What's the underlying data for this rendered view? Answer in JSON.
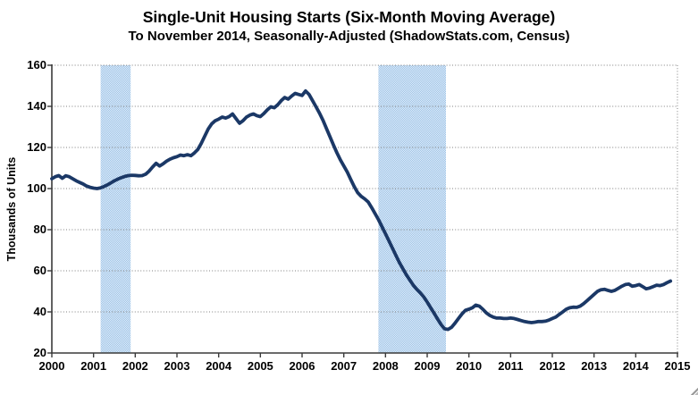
{
  "title": "Single-Unit Housing Starts (Six-Month Moving Average)",
  "subtitle": "To November 2014, Seasonally-Adjusted (ShadowStats.com, Census)",
  "chart_data": {
    "type": "line",
    "title": "Single-Unit Housing Starts (Six-Month Moving Average)",
    "subtitle": "To November 2014, Seasonally-Adjusted (ShadowStats.com, Census)",
    "xlabel": "",
    "ylabel": "Thousands of Units",
    "xlim": [
      2000,
      2015
    ],
    "ylim": [
      20,
      160
    ],
    "x_ticks": [
      2000,
      2001,
      2002,
      2003,
      2004,
      2005,
      2006,
      2007,
      2008,
      2009,
      2010,
      2011,
      2012,
      2013,
      2014,
      2015
    ],
    "y_ticks": [
      20,
      40,
      60,
      80,
      100,
      120,
      140,
      160
    ],
    "grid": "horizontal-dotted",
    "legend": "none",
    "colors": {
      "line": "#1b3866",
      "band_dot": "#9cc2e5",
      "band_bg": "#e2eefb",
      "grid": "#7f7f7f",
      "axis": "#3a3a3a",
      "text": "#000000"
    },
    "recession_bands": [
      {
        "start": 2001.17,
        "end": 2001.89
      },
      {
        "start": 2007.83,
        "end": 2009.45
      }
    ],
    "series": [
      {
        "name": "Single-unit housing starts, 6-month moving average",
        "x_start_year": 2000,
        "points_per_year": 12,
        "last_point": "November 2014",
        "values": [
          104.8,
          105.8,
          106.3,
          105.0,
          106.2,
          105.8,
          104.8,
          103.8,
          103.0,
          102.2,
          101.2,
          100.6,
          100.2,
          100.0,
          100.3,
          101.0,
          101.8,
          102.8,
          103.8,
          104.6,
          105.3,
          105.9,
          106.3,
          106.5,
          106.4,
          106.2,
          106.3,
          107.0,
          108.5,
          110.5,
          112.3,
          111.0,
          112.0,
          113.3,
          114.3,
          115.0,
          115.5,
          116.3,
          116.0,
          116.5,
          116.0,
          117.3,
          119.0,
          122.0,
          125.5,
          129.0,
          131.5,
          133.0,
          133.8,
          134.8,
          134.3,
          135.0,
          136.3,
          134.0,
          131.8,
          133.0,
          134.8,
          135.8,
          136.3,
          135.5,
          135.0,
          136.5,
          138.3,
          139.8,
          139.3,
          140.8,
          142.8,
          144.3,
          143.5,
          145.0,
          146.3,
          145.8,
          145.3,
          147.5,
          145.8,
          142.8,
          139.8,
          136.8,
          133.3,
          129.3,
          125.3,
          121.3,
          117.5,
          114.0,
          111.0,
          108.0,
          104.5,
          101.0,
          98.0,
          96.2,
          95.0,
          93.5,
          90.8,
          87.8,
          84.8,
          81.5,
          78.0,
          74.5,
          71.0,
          67.5,
          64.0,
          61.0,
          58.0,
          55.5,
          53.0,
          51.0,
          49.3,
          47.3,
          44.8,
          42.0,
          39.3,
          36.5,
          33.8,
          31.8,
          31.5,
          32.5,
          34.5,
          36.8,
          39.0,
          40.8,
          41.3,
          42.0,
          43.3,
          42.8,
          41.3,
          39.5,
          38.3,
          37.5,
          37.0,
          37.0,
          36.8,
          36.8,
          37.0,
          36.8,
          36.3,
          35.8,
          35.3,
          35.0,
          34.8,
          35.0,
          35.3,
          35.3,
          35.5,
          36.0,
          36.8,
          37.5,
          38.8,
          40.0,
          41.3,
          42.0,
          42.3,
          42.2,
          42.8,
          44.0,
          45.5,
          47.0,
          48.5,
          50.0,
          50.8,
          51.0,
          50.5,
          50.0,
          50.5,
          51.5,
          52.5,
          53.3,
          53.5,
          52.5,
          52.8,
          53.3,
          52.3,
          51.2,
          51.6,
          52.3,
          53.0,
          52.8,
          53.3,
          54.2,
          55.0
        ]
      }
    ]
  }
}
